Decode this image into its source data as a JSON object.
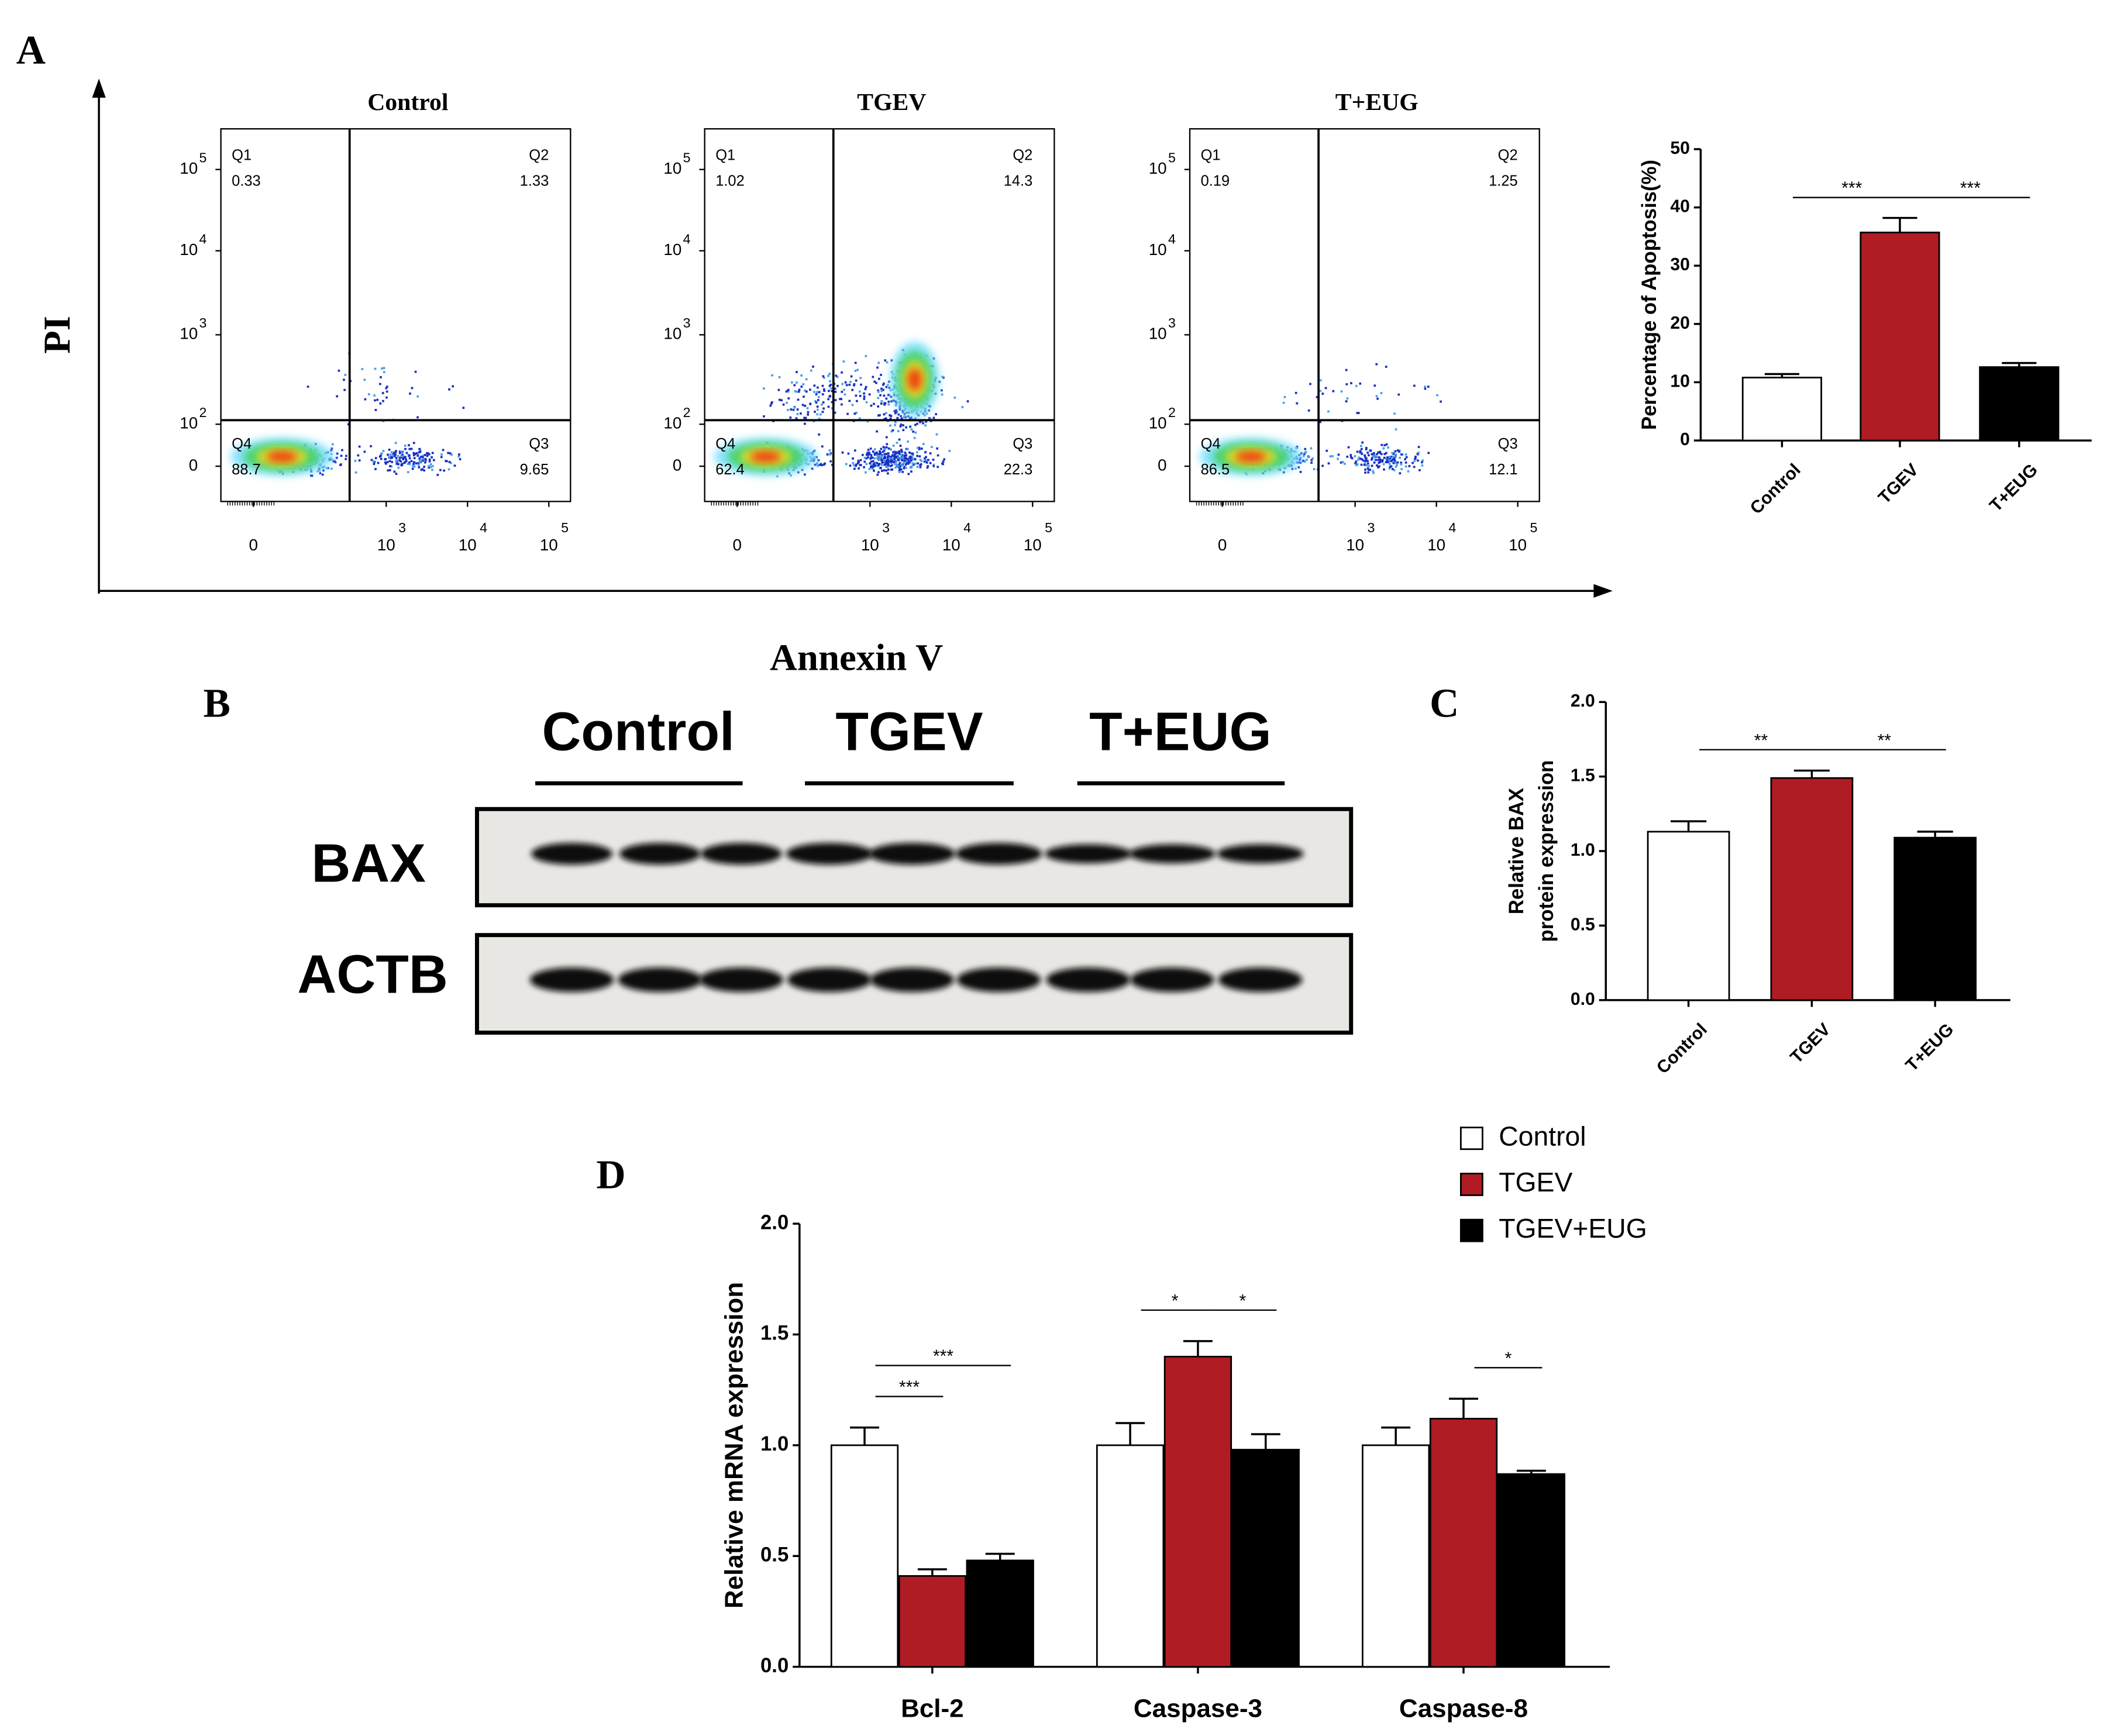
{
  "panel_labels": [
    "A",
    "B",
    "C",
    "D"
  ],
  "flow": {
    "y_label": "PI",
    "x_label": "Annexin V",
    "yticks": [
      {
        "base": "0"
      },
      {
        "base": "10",
        "exp": "2"
      },
      {
        "base": "10",
        "exp": "3"
      },
      {
        "base": "10",
        "exp": "4"
      },
      {
        "base": "10",
        "exp": "5"
      }
    ],
    "xticks": [
      {
        "base": "0"
      },
      {
        "base": "10",
        "exp": "3"
      },
      {
        "base": "10",
        "exp": "4"
      },
      {
        "base": "10",
        "exp": "5"
      }
    ],
    "plots": [
      {
        "title": "Control",
        "quadrants": [
          {
            "name": "Q1",
            "value": 0.33
          },
          {
            "name": "Q2",
            "value": 1.33
          },
          {
            "name": "Q3",
            "value": 9.65
          },
          {
            "name": "Q4",
            "value": 88.7
          }
        ]
      },
      {
        "title": "TGEV",
        "quadrants": [
          {
            "name": "Q1",
            "value": 1.02
          },
          {
            "name": "Q2",
            "value": 14.3
          },
          {
            "name": "Q3",
            "value": 22.3
          },
          {
            "name": "Q4",
            "value": 62.4
          }
        ]
      },
      {
        "title": "T+EUG",
        "quadrants": [
          {
            "name": "Q1",
            "value": 0.19
          },
          {
            "name": "Q2",
            "value": 1.25
          },
          {
            "name": "Q3",
            "value": 12.1
          },
          {
            "name": "Q4",
            "value": 86.5
          }
        ]
      }
    ]
  },
  "western": {
    "groups": [
      "Control",
      "TGEV",
      "T+EUG"
    ],
    "rows": [
      "BAX",
      "ACTB"
    ]
  },
  "chart_data": [
    {
      "type": "bar",
      "ylabel": [
        "Percentage of Apoptosis(%)"
      ],
      "categories": [
        "Control",
        "TGEV",
        "T+EUG"
      ],
      "values": [
        10.8,
        35.7,
        12.6
      ],
      "errors": [
        0.6,
        2.5,
        0.7
      ],
      "colors": [
        "#ffffff",
        "#b01c24",
        "#000000"
      ],
      "ylim": [
        0,
        50
      ],
      "yticks": [
        0,
        10,
        20,
        30,
        40,
        50
      ],
      "annotations": [
        {
          "text": "***",
          "from": 0,
          "to": 1
        },
        {
          "text": "***",
          "from": 1,
          "to": 2
        }
      ]
    },
    {
      "type": "bar",
      "ylabel": [
        "Relative  BAX",
        "protein expression"
      ],
      "categories": [
        "Control",
        "TGEV",
        "T+EUG"
      ],
      "values": [
        1.13,
        1.49,
        1.09
      ],
      "errors": [
        0.07,
        0.05,
        0.04
      ],
      "colors": [
        "#ffffff",
        "#b01c24",
        "#000000"
      ],
      "ylim": [
        0,
        2
      ],
      "yticks": [
        {
          "value": 0,
          "label": "0.0"
        },
        {
          "value": 0.5,
          "label": "0.5"
        },
        {
          "value": 1,
          "label": "1.0"
        },
        {
          "value": 1.5,
          "label": "1.5"
        },
        {
          "value": 2,
          "label": "2.0"
        }
      ],
      "annotations": [
        {
          "text": "**",
          "from": 0,
          "to": 1
        },
        {
          "text": "**",
          "from": 1,
          "to": 2
        }
      ]
    },
    {
      "type": "grouped_bar",
      "ylabel": [
        "Relative mRNA expression"
      ],
      "categories": [
        "Bcl-2",
        "Caspase-3",
        "Caspase-8"
      ],
      "series": [
        {
          "name": "Control",
          "color": "#ffffff",
          "values": [
            1.0,
            1.0,
            1.0
          ],
          "errors": [
            0.08,
            0.1,
            0.08
          ]
        },
        {
          "name": "TGEV",
          "color": "#b01c24",
          "values": [
            0.41,
            1.4,
            1.12
          ],
          "errors": [
            0.03,
            0.07,
            0.09
          ]
        },
        {
          "name": "TGEV+EUG",
          "color": "#000000",
          "values": [
            0.48,
            0.98,
            0.87
          ],
          "errors": [
            0.03,
            0.07,
            0.015
          ]
        }
      ],
      "ylim": [
        0,
        2
      ],
      "yticks": [
        {
          "value": 0,
          "label": "0.0"
        },
        {
          "value": 0.5,
          "label": "0.5"
        },
        {
          "value": 1,
          "label": "1.0"
        },
        {
          "value": 1.5,
          "label": "1.5"
        },
        {
          "value": 2,
          "label": "2.0"
        }
      ],
      "legend": "top-right",
      "annotations": [
        {
          "text": "***",
          "category": 0,
          "from": 0,
          "to": 1
        },
        {
          "text": "***",
          "category": 0,
          "from": 0,
          "to": 2
        },
        {
          "text": "*",
          "category": 1,
          "from": 0,
          "to": 1
        },
        {
          "text": "*",
          "category": 1,
          "from": 1,
          "to": 2
        },
        {
          "text": "*",
          "category": 2,
          "from": 1,
          "to": 2
        }
      ]
    }
  ]
}
